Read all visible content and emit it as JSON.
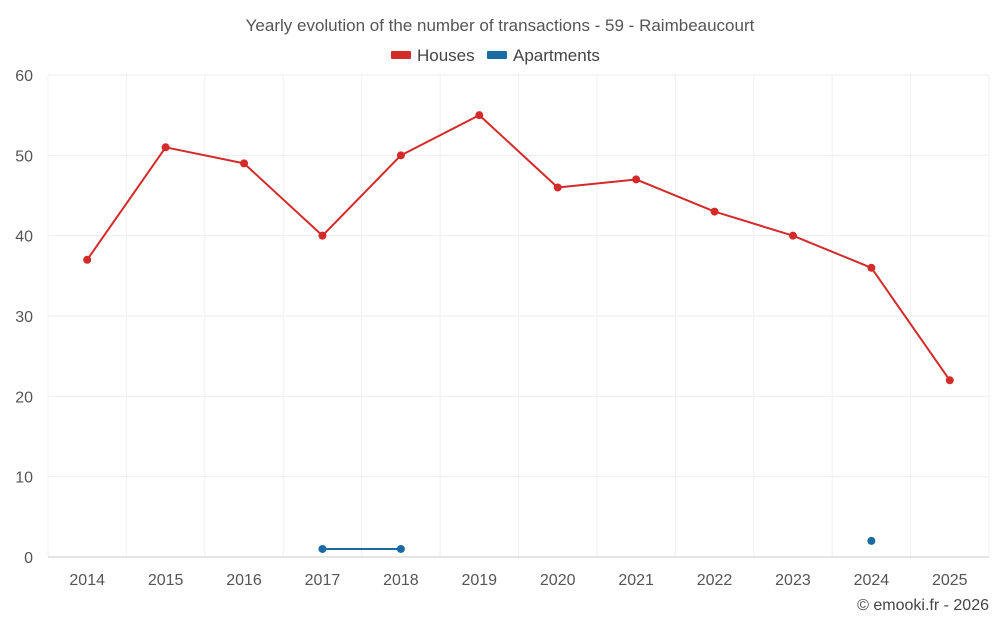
{
  "chart_data": {
    "type": "line",
    "title": "Yearly evolution of the number of transactions - 59 - Raimbeaucourt",
    "categories": [
      "2014",
      "2015",
      "2016",
      "2017",
      "2018",
      "2019",
      "2020",
      "2021",
      "2022",
      "2023",
      "2024",
      "2025"
    ],
    "series": [
      {
        "name": "Houses",
        "color": "#d42a2a",
        "values": [
          37,
          51,
          49,
          40,
          50,
          55,
          46,
          47,
          43,
          40,
          36,
          22
        ]
      },
      {
        "name": "Apartments",
        "color": "#1a6aa3",
        "values": [
          null,
          null,
          null,
          1,
          1,
          null,
          null,
          null,
          null,
          null,
          2,
          null
        ]
      }
    ],
    "ylim": [
      0,
      60
    ],
    "yticks": [
      0,
      10,
      20,
      30,
      40,
      50,
      60
    ],
    "xlabel": "",
    "ylabel": "",
    "grid": true,
    "legend_position": "top-center"
  },
  "credit": "© emooki.fr - 2026"
}
